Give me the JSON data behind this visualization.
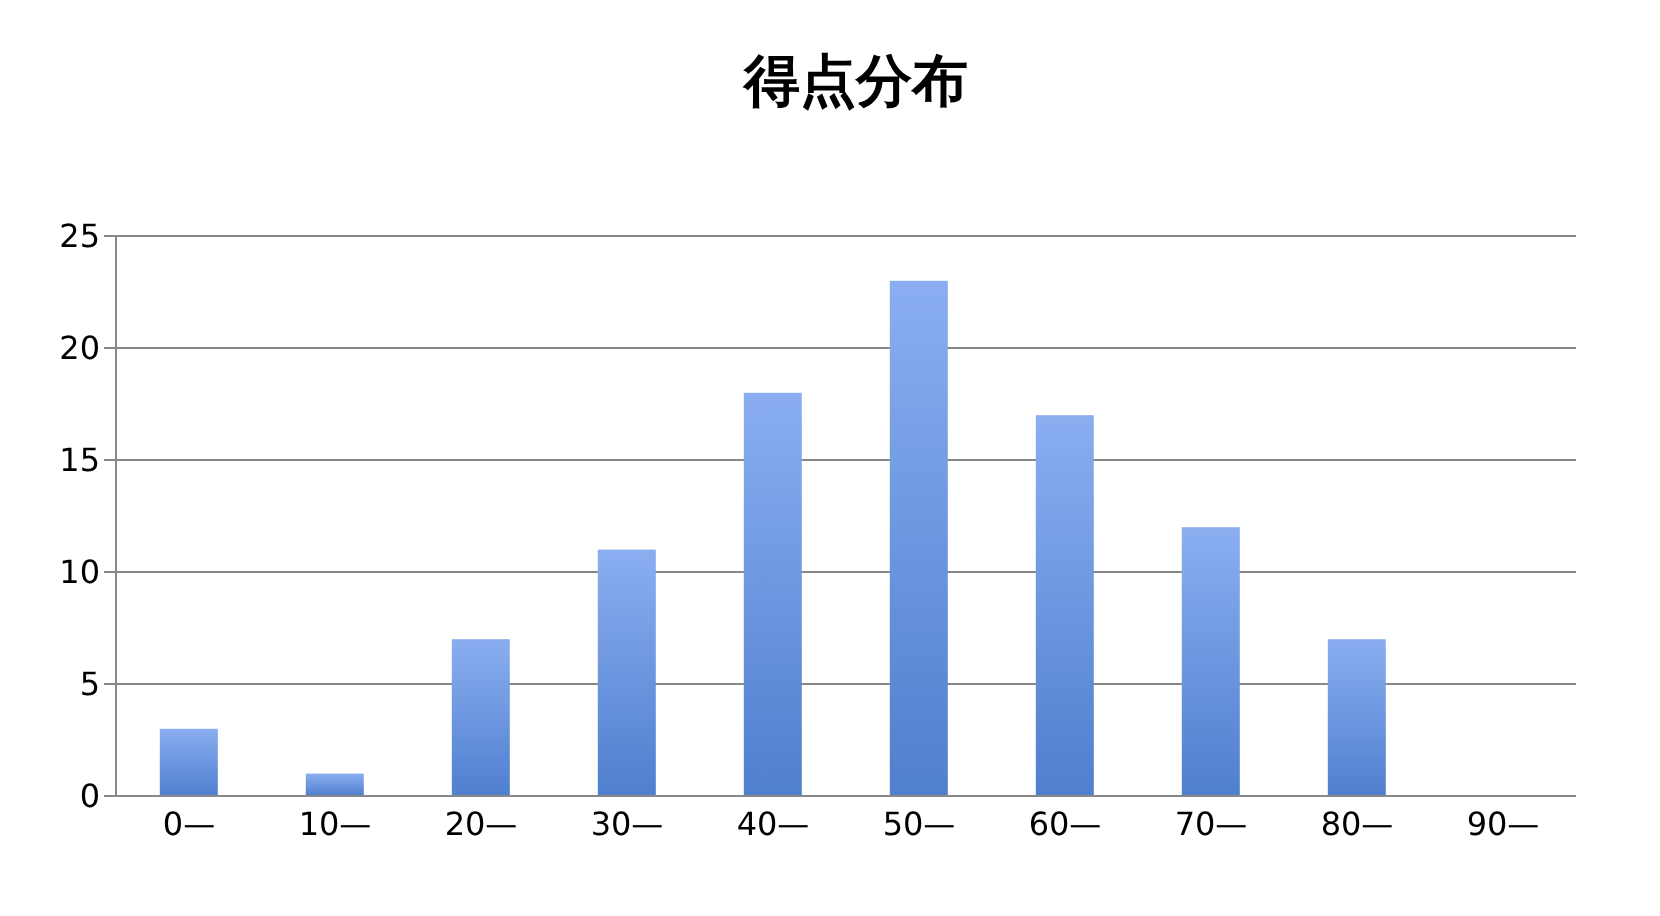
{
  "chart_data": {
    "type": "bar",
    "title": "得点分布",
    "categories": [
      "0—",
      "10—",
      "20—",
      "30—",
      "40—",
      "50—",
      "60—",
      "70—",
      "80—",
      "90—"
    ],
    "values": [
      3,
      1,
      7,
      11,
      18,
      23,
      17,
      12,
      7,
      0
    ],
    "color": "#8aaef0",
    "ylim": [
      0,
      25
    ],
    "yticks": [
      0,
      5,
      10,
      15,
      20,
      25
    ],
    "grid": "y"
  }
}
